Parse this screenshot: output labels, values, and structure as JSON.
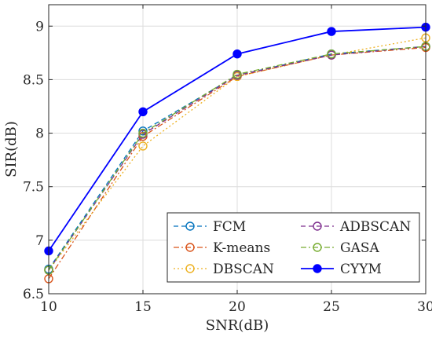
{
  "chart_data": {
    "type": "line",
    "xlabel": "SNR(dB)",
    "ylabel": "SIR(dB)",
    "xlim": [
      10,
      30
    ],
    "ylim": [
      6.5,
      9.2
    ],
    "x_ticks": [
      "10",
      "15",
      "20",
      "25",
      "30"
    ],
    "y_ticks": [
      "6.5",
      "7",
      "7.5",
      "8",
      "8.5",
      "9"
    ],
    "grid": true,
    "legend_position": "bottom-right",
    "legend_columns": 2,
    "x": [
      10,
      15,
      20,
      25,
      30
    ],
    "series": [
      {
        "name": "FCM",
        "values": [
          6.73,
          8.02,
          8.54,
          8.74,
          8.81
        ],
        "color": "#0072BD",
        "dash": "dashed",
        "marker": "open-circle"
      },
      {
        "name": "K-means",
        "values": [
          6.64,
          7.97,
          8.53,
          8.73,
          8.8
        ],
        "color": "#D95319",
        "dash": "dashdot",
        "marker": "open-circle"
      },
      {
        "name": "DBSCAN",
        "values": [
          6.72,
          7.88,
          8.53,
          8.73,
          8.89
        ],
        "color": "#EDB120",
        "dash": "dotted",
        "marker": "open-circle"
      },
      {
        "name": "ADBSCAN",
        "values": [
          6.72,
          7.99,
          8.54,
          8.73,
          8.81
        ],
        "color": "#7E2F8E",
        "dash": "dashed",
        "marker": "open-circle"
      },
      {
        "name": "GASA",
        "values": [
          6.72,
          8.0,
          8.55,
          8.74,
          8.81
        ],
        "color": "#77AC30",
        "dash": "dashdot",
        "marker": "open-circle"
      },
      {
        "name": "CYYM",
        "values": [
          6.9,
          8.2,
          8.74,
          8.95,
          8.99
        ],
        "color": "#0000FF",
        "dash": "solid",
        "marker": "filled-circle"
      }
    ]
  }
}
